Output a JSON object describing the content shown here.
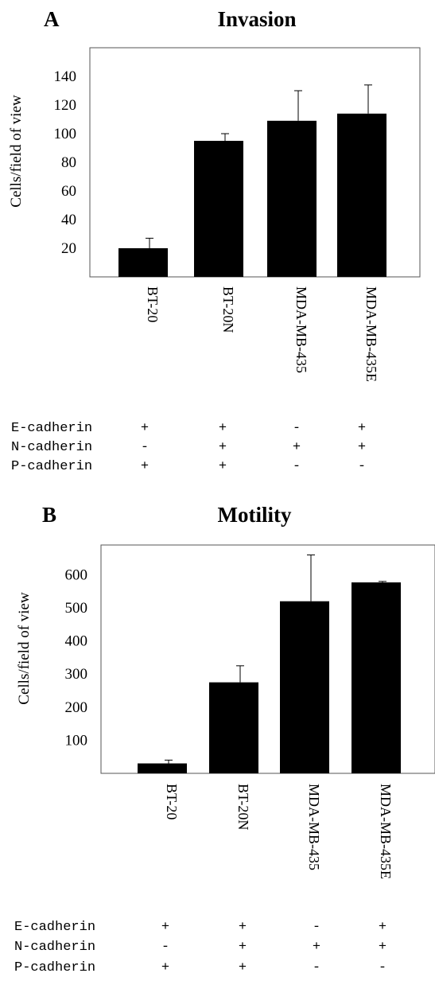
{
  "figure": {
    "panels": [
      {
        "letter": "A",
        "title": "Invasion"
      },
      {
        "letter": "B",
        "title": "Motility"
      }
    ]
  },
  "chart_data": [
    {
      "type": "bar",
      "title": "Invasion",
      "ylabel": "Cells/field of view",
      "xlabel": "",
      "categories": [
        "BT-20",
        "BT-20N",
        "MDA-MB-435",
        "MDA-MB-435E"
      ],
      "values": [
        20,
        95,
        109,
        114
      ],
      "errors": [
        7,
        5,
        21,
        20
      ],
      "yticks": [
        20,
        40,
        60,
        80,
        100,
        120,
        140
      ],
      "ylim": [
        0,
        160
      ],
      "grid": false,
      "color": "#000000",
      "cadherin_table": [
        {
          "label": "E-cadherin",
          "values": [
            "+",
            "+",
            "-",
            "+"
          ]
        },
        {
          "label": "N-cadherin",
          "values": [
            "-",
            "+",
            "+",
            "+"
          ]
        },
        {
          "label": "P-cadherin",
          "values": [
            "+",
            "+",
            "-",
            "-"
          ]
        }
      ]
    },
    {
      "type": "bar",
      "title": "Motility",
      "ylabel": "Cells/field of view",
      "xlabel": "",
      "categories": [
        "BT-20",
        "BT-20N",
        "MDA-MB-435",
        "MDA-MB-435E"
      ],
      "values": [
        30,
        275,
        520,
        577
      ],
      "errors": [
        10,
        50,
        140,
        3
      ],
      "yticks": [
        100,
        200,
        300,
        400,
        500,
        600
      ],
      "ylim": [
        0,
        690
      ],
      "grid": false,
      "color": "#000000",
      "cadherin_table": [
        {
          "label": "E-cadherin",
          "values": [
            "+",
            "+",
            "-",
            "+"
          ]
        },
        {
          "label": "N-cadherin",
          "values": [
            "-",
            "+",
            "+",
            "+"
          ]
        },
        {
          "label": "P-cadherin",
          "values": [
            "+",
            "+",
            "-",
            "-"
          ]
        }
      ]
    }
  ]
}
